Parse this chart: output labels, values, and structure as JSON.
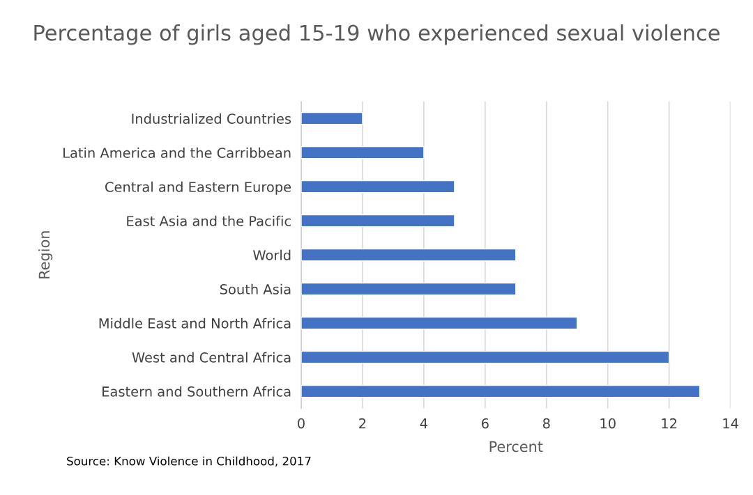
{
  "chart_data": {
    "type": "bar",
    "orientation": "horizontal",
    "title": "Percentage of girls aged 15-19 who experienced sexual violence",
    "xlabel": "Percent",
    "ylabel": "Region",
    "categories": [
      "Industrialized Countries",
      "Latin America and the Carribbean",
      "Central and Eastern Europe",
      "East Asia and the Pacific",
      "World",
      "South Asia",
      "Middle East and North Africa",
      "West and Central Africa",
      "Eastern and Southern Africa"
    ],
    "values": [
      2,
      4,
      5,
      5,
      7,
      7,
      9,
      12,
      13
    ],
    "color": "#4472c4",
    "xlim": [
      0,
      14
    ],
    "xticks": [
      0,
      2,
      4,
      6,
      8,
      10,
      12,
      14
    ],
    "grid": "x",
    "legend": false,
    "annotations": [
      "Source: Know Violence in Childhood, 2017"
    ]
  }
}
